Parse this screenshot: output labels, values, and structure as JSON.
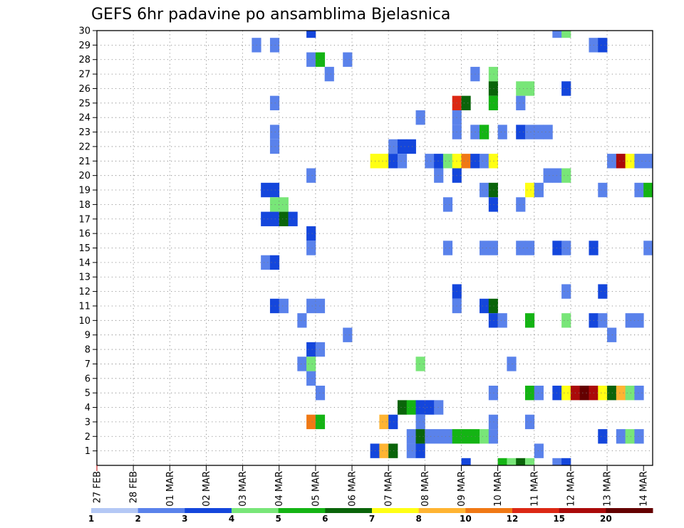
{
  "chart_data": {
    "type": "heatmap",
    "title": "GEFS 6hr padavine po ansamblima Bjelasnica",
    "xlabel": "",
    "ylabel": "",
    "y_range": [
      0,
      30
    ],
    "y_ticks": [
      1,
      2,
      3,
      4,
      5,
      6,
      7,
      8,
      9,
      10,
      11,
      12,
      13,
      14,
      15,
      16,
      17,
      18,
      19,
      20,
      21,
      22,
      23,
      24,
      25,
      26,
      27,
      28,
      29,
      30
    ],
    "time_steps_per_day": 4,
    "time_steps_total": 61,
    "x_tick_labels": [
      "27 FEB",
      "28 FEB",
      "01 MAR",
      "02 MAR",
      "03 MAR",
      "04 MAR",
      "05 MAR",
      "06 MAR",
      "07 MAR",
      "08 MAR",
      "09 MAR",
      "10 MAR",
      "11 MAR",
      "12 MAR",
      "13 MAR",
      "14 MAR"
    ],
    "colorbar": {
      "labels": [
        "1",
        "2",
        "3",
        "4",
        "5",
        "6",
        "7",
        "8",
        "10",
        "12",
        "15",
        "20"
      ],
      "colors": [
        "#b4c8f5",
        "#5a82eb",
        "#1446dc",
        "#78e678",
        "#14b414",
        "#0a640a",
        "#ffff14",
        "#ffb432",
        "#f07814",
        "#dc2814",
        "#aa0a0a",
        "#640000"
      ]
    },
    "cells": [
      {
        "member": 30,
        "step": 23,
        "v": 2
      },
      {
        "member": 30,
        "step": 50,
        "v": 1
      },
      {
        "member": 30,
        "step": 51,
        "v": 3
      },
      {
        "member": 29,
        "step": 17,
        "v": 1
      },
      {
        "member": 29,
        "step": 19,
        "v": 1
      },
      {
        "member": 29,
        "step": 54,
        "v": 1
      },
      {
        "member": 29,
        "step": 55,
        "v": 2
      },
      {
        "member": 28,
        "step": 23,
        "v": 1
      },
      {
        "member": 28,
        "step": 24,
        "v": 4
      },
      {
        "member": 28,
        "step": 27,
        "v": 1
      },
      {
        "member": 27,
        "step": 25,
        "v": 1
      },
      {
        "member": 27,
        "step": 41,
        "v": 1
      },
      {
        "member": 27,
        "step": 43,
        "v": 3
      },
      {
        "member": 26,
        "step": 43,
        "v": 5
      },
      {
        "member": 26,
        "step": 46,
        "v": 3
      },
      {
        "member": 26,
        "step": 47,
        "v": 3
      },
      {
        "member": 26,
        "step": 51,
        "v": 2
      },
      {
        "member": 25,
        "step": 19,
        "v": 1
      },
      {
        "member": 25,
        "step": 39,
        "v": 9
      },
      {
        "member": 25,
        "step": 40,
        "v": 5
      },
      {
        "member": 25,
        "step": 43,
        "v": 4
      },
      {
        "member": 25,
        "step": 46,
        "v": 1
      },
      {
        "member": 24,
        "step": 35,
        "v": 1
      },
      {
        "member": 24,
        "step": 39,
        "v": 1
      },
      {
        "member": 23,
        "step": 19,
        "v": 1
      },
      {
        "member": 23,
        "step": 39,
        "v": 1
      },
      {
        "member": 23,
        "step": 41,
        "v": 1
      },
      {
        "member": 23,
        "step": 42,
        "v": 4
      },
      {
        "member": 23,
        "step": 44,
        "v": 1
      },
      {
        "member": 23,
        "step": 46,
        "v": 2
      },
      {
        "member": 23,
        "step": 47,
        "v": 1
      },
      {
        "member": 23,
        "step": 48,
        "v": 1
      },
      {
        "member": 23,
        "step": 49,
        "v": 1
      },
      {
        "member": 22,
        "step": 19,
        "v": 1
      },
      {
        "member": 22,
        "step": 32,
        "v": 1
      },
      {
        "member": 22,
        "step": 33,
        "v": 2
      },
      {
        "member": 22,
        "step": 34,
        "v": 2
      },
      {
        "member": 21,
        "step": 30,
        "v": 6
      },
      {
        "member": 21,
        "step": 31,
        "v": 6
      },
      {
        "member": 21,
        "step": 32,
        "v": 2
      },
      {
        "member": 21,
        "step": 33,
        "v": 1
      },
      {
        "member": 21,
        "step": 36,
        "v": 1
      },
      {
        "member": 21,
        "step": 37,
        "v": 2
      },
      {
        "member": 21,
        "step": 38,
        "v": 3
      },
      {
        "member": 21,
        "step": 39,
        "v": 6
      },
      {
        "member": 21,
        "step": 40,
        "v": 8
      },
      {
        "member": 21,
        "step": 41,
        "v": 2
      },
      {
        "member": 21,
        "step": 42,
        "v": 1
      },
      {
        "member": 21,
        "step": 43,
        "v": 6
      },
      {
        "member": 21,
        "step": 56,
        "v": 1
      },
      {
        "member": 21,
        "step": 57,
        "v": 10
      },
      {
        "member": 21,
        "step": 58,
        "v": 6
      },
      {
        "member": 21,
        "step": 59,
        "v": 1
      },
      {
        "member": 21,
        "step": 60,
        "v": 1
      },
      {
        "member": 20,
        "step": 23,
        "v": 1
      },
      {
        "member": 20,
        "step": 37,
        "v": 1
      },
      {
        "member": 20,
        "step": 39,
        "v": 2
      },
      {
        "member": 20,
        "step": 49,
        "v": 1
      },
      {
        "member": 20,
        "step": 50,
        "v": 1
      },
      {
        "member": 20,
        "step": 51,
        "v": 3
      },
      {
        "member": 19,
        "step": 18,
        "v": 2
      },
      {
        "member": 19,
        "step": 19,
        "v": 2
      },
      {
        "member": 19,
        "step": 42,
        "v": 1
      },
      {
        "member": 19,
        "step": 43,
        "v": 5
      },
      {
        "member": 19,
        "step": 47,
        "v": 6
      },
      {
        "member": 19,
        "step": 48,
        "v": 1
      },
      {
        "member": 19,
        "step": 55,
        "v": 1
      },
      {
        "member": 19,
        "step": 59,
        "v": 1
      },
      {
        "member": 19,
        "step": 60,
        "v": 4
      },
      {
        "member": 18,
        "step": 19,
        "v": 3
      },
      {
        "member": 18,
        "step": 20,
        "v": 3
      },
      {
        "member": 18,
        "step": 38,
        "v": 1
      },
      {
        "member": 18,
        "step": 43,
        "v": 2
      },
      {
        "member": 18,
        "step": 46,
        "v": 1
      },
      {
        "member": 17,
        "step": 18,
        "v": 2
      },
      {
        "member": 17,
        "step": 19,
        "v": 2
      },
      {
        "member": 17,
        "step": 20,
        "v": 5
      },
      {
        "member": 17,
        "step": 21,
        "v": 2
      },
      {
        "member": 16,
        "step": 23,
        "v": 2
      },
      {
        "member": 15,
        "step": 23,
        "v": 1
      },
      {
        "member": 15,
        "step": 38,
        "v": 1
      },
      {
        "member": 15,
        "step": 42,
        "v": 1
      },
      {
        "member": 15,
        "step": 43,
        "v": 1
      },
      {
        "member": 15,
        "step": 46,
        "v": 1
      },
      {
        "member": 15,
        "step": 47,
        "v": 1
      },
      {
        "member": 15,
        "step": 50,
        "v": 2
      },
      {
        "member": 15,
        "step": 51,
        "v": 1
      },
      {
        "member": 15,
        "step": 54,
        "v": 2
      },
      {
        "member": 15,
        "step": 60,
        "v": 1
      },
      {
        "member": 14,
        "step": 18,
        "v": 1
      },
      {
        "member": 14,
        "step": 19,
        "v": 2
      },
      {
        "member": 12,
        "step": 39,
        "v": 2
      },
      {
        "member": 12,
        "step": 51,
        "v": 1
      },
      {
        "member": 12,
        "step": 55,
        "v": 2
      },
      {
        "member": 11,
        "step": 19,
        "v": 2
      },
      {
        "member": 11,
        "step": 20,
        "v": 1
      },
      {
        "member": 11,
        "step": 23,
        "v": 1
      },
      {
        "member": 11,
        "step": 24,
        "v": 1
      },
      {
        "member": 11,
        "step": 39,
        "v": 1
      },
      {
        "member": 11,
        "step": 42,
        "v": 2
      },
      {
        "member": 11,
        "step": 43,
        "v": 5
      },
      {
        "member": 10,
        "step": 22,
        "v": 1
      },
      {
        "member": 10,
        "step": 43,
        "v": 2
      },
      {
        "member": 10,
        "step": 44,
        "v": 1
      },
      {
        "member": 10,
        "step": 47,
        "v": 4
      },
      {
        "member": 10,
        "step": 51,
        "v": 3
      },
      {
        "member": 10,
        "step": 54,
        "v": 2
      },
      {
        "member": 10,
        "step": 55,
        "v": 1
      },
      {
        "member": 10,
        "step": 58,
        "v": 1
      },
      {
        "member": 10,
        "step": 59,
        "v": 1
      },
      {
        "member": 9,
        "step": 27,
        "v": 1
      },
      {
        "member": 9,
        "step": 56,
        "v": 1
      },
      {
        "member": 8,
        "step": 23,
        "v": 2
      },
      {
        "member": 8,
        "step": 24,
        "v": 1
      },
      {
        "member": 7,
        "step": 22,
        "v": 1
      },
      {
        "member": 7,
        "step": 23,
        "v": 3
      },
      {
        "member": 7,
        "step": 35,
        "v": 3
      },
      {
        "member": 7,
        "step": 45,
        "v": 1
      },
      {
        "member": 6,
        "step": 23,
        "v": 1
      },
      {
        "member": 5,
        "step": 24,
        "v": 1
      },
      {
        "member": 5,
        "step": 43,
        "v": 1
      },
      {
        "member": 5,
        "step": 47,
        "v": 4
      },
      {
        "member": 5,
        "step": 48,
        "v": 1
      },
      {
        "member": 5,
        "step": 50,
        "v": 2
      },
      {
        "member": 5,
        "step": 51,
        "v": 6
      },
      {
        "member": 5,
        "step": 52,
        "v": 10
      },
      {
        "member": 5,
        "step": 53,
        "v": 11
      },
      {
        "member": 5,
        "step": 54,
        "v": 10
      },
      {
        "member": 5,
        "step": 55,
        "v": 6
      },
      {
        "member": 5,
        "step": 56,
        "v": 5
      },
      {
        "member": 5,
        "step": 57,
        "v": 7
      },
      {
        "member": 5,
        "step": 58,
        "v": 3
      },
      {
        "member": 5,
        "step": 59,
        "v": 1
      },
      {
        "member": 4,
        "step": 33,
        "v": 5
      },
      {
        "member": 4,
        "step": 34,
        "v": 4
      },
      {
        "member": 4,
        "step": 35,
        "v": 2
      },
      {
        "member": 4,
        "step": 36,
        "v": 2
      },
      {
        "member": 4,
        "step": 37,
        "v": 1
      },
      {
        "member": 3,
        "step": 23,
        "v": 8
      },
      {
        "member": 3,
        "step": 24,
        "v": 4
      },
      {
        "member": 3,
        "step": 31,
        "v": 7
      },
      {
        "member": 3,
        "step": 32,
        "v": 2
      },
      {
        "member": 3,
        "step": 35,
        "v": 1
      },
      {
        "member": 3,
        "step": 43,
        "v": 1
      },
      {
        "member": 3,
        "step": 47,
        "v": 1
      },
      {
        "member": 2,
        "step": 34,
        "v": 1
      },
      {
        "member": 2,
        "step": 35,
        "v": 5
      },
      {
        "member": 2,
        "step": 36,
        "v": 1
      },
      {
        "member": 2,
        "step": 37,
        "v": 1
      },
      {
        "member": 2,
        "step": 38,
        "v": 1
      },
      {
        "member": 2,
        "step": 39,
        "v": 4
      },
      {
        "member": 2,
        "step": 40,
        "v": 4
      },
      {
        "member": 2,
        "step": 41,
        "v": 4
      },
      {
        "member": 2,
        "step": 42,
        "v": 3
      },
      {
        "member": 2,
        "step": 43,
        "v": 1
      },
      {
        "member": 2,
        "step": 55,
        "v": 2
      },
      {
        "member": 2,
        "step": 57,
        "v": 1
      },
      {
        "member": 2,
        "step": 58,
        "v": 3
      },
      {
        "member": 2,
        "step": 59,
        "v": 1
      },
      {
        "member": 1,
        "step": 30,
        "v": 2
      },
      {
        "member": 1,
        "step": 31,
        "v": 7
      },
      {
        "member": 1,
        "step": 32,
        "v": 5
      },
      {
        "member": 1,
        "step": 34,
        "v": 1
      },
      {
        "member": 1,
        "step": 35,
        "v": 2
      },
      {
        "member": 1,
        "step": 48,
        "v": 1
      },
      {
        "member": 0,
        "step": 40,
        "v": 2
      },
      {
        "member": 0,
        "step": 44,
        "v": 4
      },
      {
        "member": 0,
        "step": 45,
        "v": 3
      },
      {
        "member": 0,
        "step": 46,
        "v": 5
      },
      {
        "member": 0,
        "step": 47,
        "v": 3
      },
      {
        "member": 0,
        "step": 50,
        "v": 1
      },
      {
        "member": 0,
        "step": 51,
        "v": 2
      }
    ]
  }
}
